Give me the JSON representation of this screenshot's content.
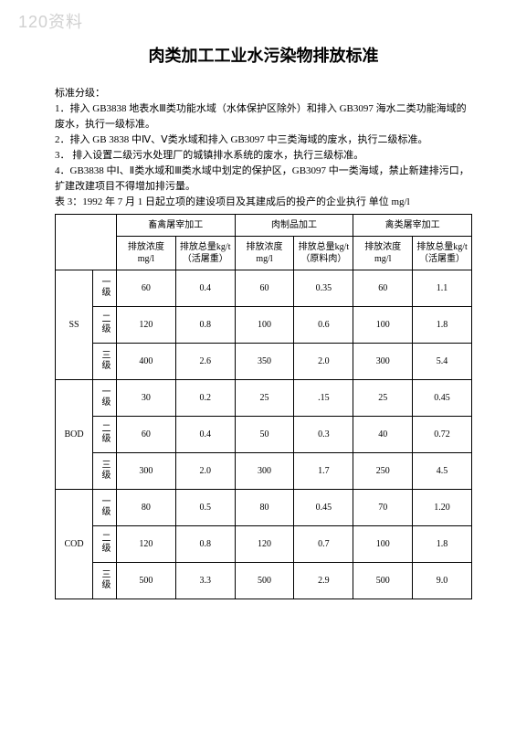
{
  "watermark": "120资料",
  "title": "肉类加工工业水污染物排放标准",
  "intro": {
    "heading": "标准分级：",
    "p1": "1．排入 GB3838 地表水Ⅲ类功能水域（水体保护区除外）和排入 GB3097 海水二类功能海域的废水，执行一级标准。",
    "p2": "2．排入 GB 3838 中Ⅳ、Ⅴ类水域和排入 GB3097 中三类海域的废水，执行二级标准。",
    "p3": "3．  排入设置二级污水处理厂的城镇排水系统的废水，执行三级标准。",
    "p4": "4．GB3838 中Ⅰ、Ⅱ类水域和Ⅲ类水域中划定的保护区，GB3097 中一类海域，禁止新建排污口，扩建改建项目不得增加排污量。",
    "p5": "表 3：1992 年 7 月 1 日起立项的建设项目及其建成后的投产的企业执行    单位 mg/l"
  },
  "table": {
    "groupHeaders": {
      "g1": "畜禽屠宰加工",
      "g2": "肉制品加工",
      "g3": "禽类屠宰加工"
    },
    "colHeaders": {
      "c1": "排放浓度 mg/l",
      "c2": "排放总量kg/t（活屠重）",
      "c3": "排放浓度 mg/l",
      "c4": "排放总量kg/t（原料肉）",
      "c5": "排放浓度 mg/l",
      "c6": "排放总量kg/t（活屠重）"
    },
    "levels": {
      "l1": "一级",
      "l2": "二级",
      "l3": "三级"
    },
    "params": {
      "ss": "SS",
      "bod": "BOD",
      "cod": "COD"
    },
    "rows": {
      "ss1": {
        "v1": "60",
        "v2": "0.4",
        "v3": "60",
        "v4": "0.35",
        "v5": "60",
        "v6": "1.1"
      },
      "ss2": {
        "v1": "120",
        "v2": "0.8",
        "v3": "100",
        "v4": "0.6",
        "v5": "100",
        "v6": "1.8"
      },
      "ss3": {
        "v1": "400",
        "v2": "2.6",
        "v3": "350",
        "v4": "2.0",
        "v5": "300",
        "v6": "5.4"
      },
      "bod1": {
        "v1": "30",
        "v2": "0.2",
        "v3": "25",
        "v4": ".15",
        "v5": "25",
        "v6": "0.45"
      },
      "bod2": {
        "v1": "60",
        "v2": "0.4",
        "v3": "50",
        "v4": "0.3",
        "v5": "40",
        "v6": "0.72"
      },
      "bod3": {
        "v1": "300",
        "v2": "2.0",
        "v3": "300",
        "v4": "1.7",
        "v5": "250",
        "v6": "4.5"
      },
      "cod1": {
        "v1": "80",
        "v2": "0.5",
        "v3": "80",
        "v4": "0.45",
        "v5": "70",
        "v6": "1.20"
      },
      "cod2": {
        "v1": "120",
        "v2": "0.8",
        "v3": "120",
        "v4": "0.7",
        "v5": "100",
        "v6": "1.8"
      },
      "cod3": {
        "v1": "500",
        "v2": "3.3",
        "v3": "500",
        "v4": "2.9",
        "v5": "500",
        "v6": "9.0"
      }
    }
  }
}
